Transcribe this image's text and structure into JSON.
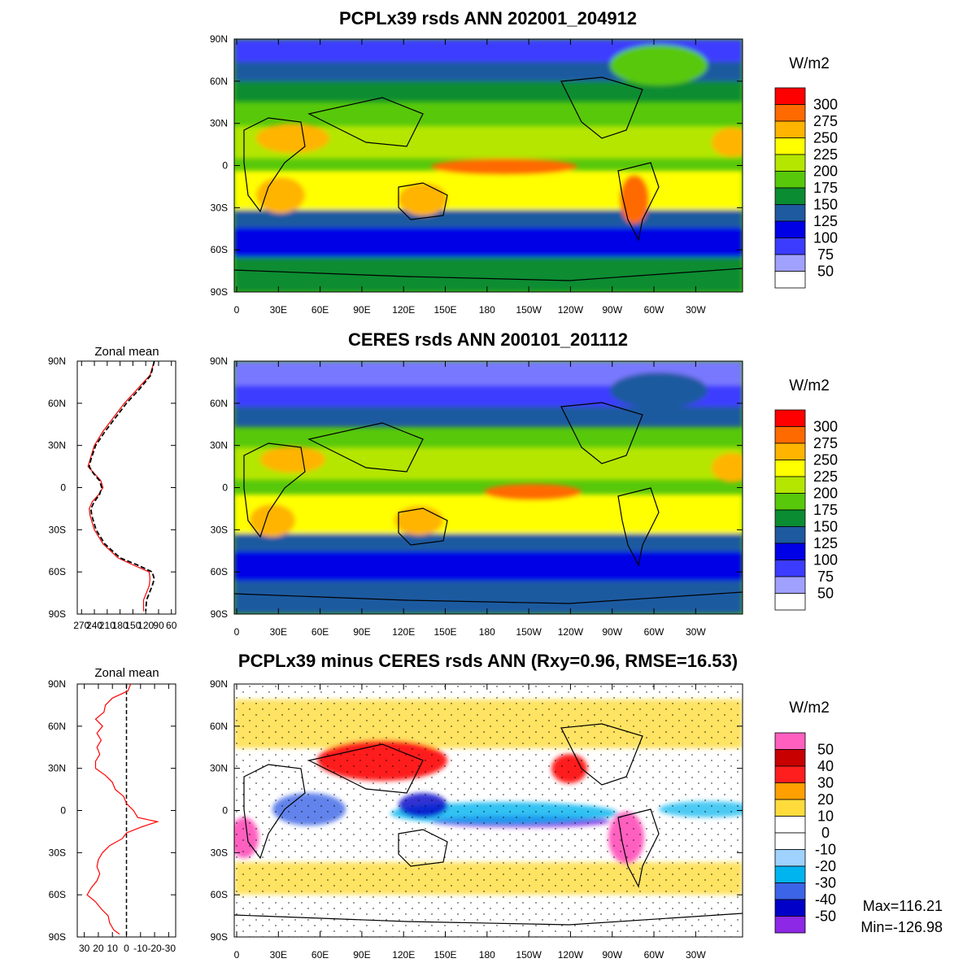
{
  "chart_data": [
    {
      "type": "heatmap",
      "id": "model",
      "title": "PCPLx39 rsds ANN 202001_204912",
      "xticks": [
        "0",
        "30E",
        "60E",
        "90E",
        "120E",
        "150E",
        "180",
        "150W",
        "120W",
        "90W",
        "60W",
        "30W"
      ],
      "yticks": [
        "90N",
        "60N",
        "30N",
        "0",
        "30S",
        "60S",
        "90S"
      ],
      "colorbar": {
        "unit": "W/m2",
        "levels": [
          "300",
          "275",
          "250",
          "225",
          "200",
          "175",
          "150",
          "125",
          "100",
          "75",
          "50"
        ],
        "colors": [
          "#ff0000",
          "#ff6a00",
          "#ffb400",
          "#ffff00",
          "#b4e600",
          "#58c80a",
          "#0a8c32",
          "#1e5aa0",
          "#0000e6",
          "#3c3cff",
          "#a0a0ff",
          "#ffffff"
        ]
      }
    },
    {
      "type": "heatmap",
      "id": "obs",
      "title": "CERES rsds ANN 200101_201112",
      "xticks": [
        "0",
        "30E",
        "60E",
        "90E",
        "120E",
        "150E",
        "180",
        "150W",
        "120W",
        "90W",
        "60W",
        "30W"
      ],
      "yticks": [
        "90N",
        "60N",
        "30N",
        "0",
        "30S",
        "60S",
        "90S"
      ],
      "colorbar": {
        "unit": "W/m2",
        "levels": [
          "300",
          "275",
          "250",
          "225",
          "200",
          "175",
          "150",
          "125",
          "100",
          "75",
          "50"
        ],
        "colors": [
          "#ff0000",
          "#ff6a00",
          "#ffb400",
          "#ffff00",
          "#b4e600",
          "#58c80a",
          "#0a8c32",
          "#1e5aa0",
          "#0000e6",
          "#3c3cff",
          "#a0a0ff",
          "#ffffff"
        ]
      },
      "zonal_mean": {
        "title": "Zonal mean",
        "xticks": [
          "270",
          "240",
          "210",
          "180",
          "150",
          "120",
          "90",
          "60"
        ],
        "yticks": [
          "90N",
          "60N",
          "30N",
          "0",
          "30S",
          "60S",
          "90S"
        ],
        "lat": [
          90,
          80,
          70,
          60,
          50,
          40,
          30,
          20,
          15,
          10,
          5,
          0,
          -5,
          -10,
          -15,
          -20,
          -30,
          -40,
          -50,
          -55,
          -60,
          -65,
          -70,
          -80,
          -88
        ],
        "series": [
          {
            "color": "#ff0000",
            "style": "solid",
            "values": [
              100,
              110,
              140,
              170,
              195,
              220,
              240,
              250,
              255,
              240,
              225,
              220,
              230,
              245,
              252,
              250,
              240,
              220,
              185,
              150,
              112,
              110,
              112,
              125,
              125
            ]
          },
          {
            "color": "#000000",
            "style": "dashed",
            "values": [
              100,
              108,
              135,
              165,
              190,
              215,
              237,
              248,
              252,
              242,
              228,
              223,
              228,
              240,
              248,
              246,
              236,
              216,
              180,
              140,
              105,
              100,
              105,
              118,
              120
            ]
          }
        ]
      }
    },
    {
      "type": "heatmap",
      "id": "diff",
      "title": "PCPLx39 minus CERES rsds ANN (Rxy=0.96, RMSE=16.53)",
      "xticks": [
        "0",
        "30E",
        "60E",
        "90E",
        "120E",
        "150E",
        "180",
        "150W",
        "120W",
        "90W",
        "60W",
        "30W"
      ],
      "yticks": [
        "90N",
        "60N",
        "30N",
        "0",
        "30S",
        "60S",
        "90S"
      ],
      "colorbar": {
        "unit": "W/m2",
        "levels": [
          "50",
          "40",
          "30",
          "20",
          "10",
          "0",
          "-10",
          "-20",
          "-30",
          "-40",
          "-50"
        ],
        "colors": [
          "#ff60c0",
          "#c80000",
          "#ff1e1e",
          "#ffa000",
          "#ffdc3c",
          "#ffffff",
          "#ffffff",
          "#a0d2ff",
          "#00b4f0",
          "#3c64e6",
          "#0000c8",
          "#8c28e6"
        ]
      },
      "stats": {
        "max": "Max=116.21",
        "min": "Min=-126.98"
      },
      "zonal_mean": {
        "title": "Zonal mean",
        "xticks": [
          "30",
          "20",
          "10",
          "0",
          "-10",
          "-20",
          "-30"
        ],
        "yticks": [
          "90N",
          "60N",
          "30N",
          "0",
          "30S",
          "60S",
          "90S"
        ],
        "lat": [
          90,
          85,
          80,
          75,
          70,
          65,
          60,
          55,
          50,
          45,
          40,
          35,
          30,
          25,
          20,
          15,
          10,
          5,
          0,
          -5,
          -8,
          -12,
          -16,
          -20,
          -25,
          -30,
          -35,
          -40,
          -45,
          -50,
          -55,
          -60,
          -65,
          -70,
          -75,
          -80,
          -85,
          -88
        ],
        "series": [
          {
            "color": "#ff0000",
            "style": "solid",
            "values": [
              -3,
              -1,
              10,
              15,
              16,
              22,
              17,
              21,
              18,
              21,
              19,
              22,
              22,
              15,
              10,
              8,
              2,
              0,
              -5,
              -8,
              -22,
              -10,
              0,
              3,
              12,
              17,
              20,
              21,
              19,
              21,
              25,
              28,
              22,
              18,
              13,
              12,
              9,
              5
            ]
          }
        ],
        "zero_line": 0
      }
    }
  ]
}
